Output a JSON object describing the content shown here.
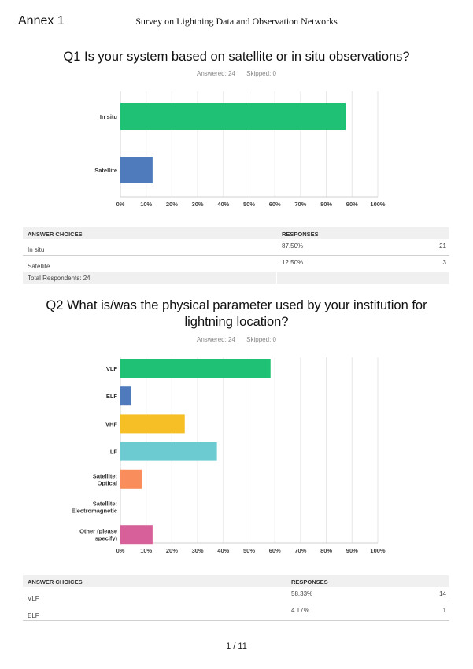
{
  "header": {
    "annex": "Annex 1",
    "title": "Survey on  Lightning Data and Observation Networks"
  },
  "q1": {
    "title": "Q1 Is your system based on satellite or in situ observations?",
    "answered": "Answered: 24",
    "skipped": "Skipped: 0",
    "table": {
      "col_choices": "ANSWER CHOICES",
      "col_responses": "RESPONSES",
      "rows": [
        {
          "label": "In situ",
          "pct": "87.50%",
          "count": "21"
        },
        {
          "label": "Satellite",
          "pct": "12.50%",
          "count": "3"
        }
      ],
      "total": "Total Respondents: 24"
    }
  },
  "q2": {
    "title_line1": "Q2 What is/was the physical parameter used by your institution for",
    "title_line2": "lightning location?",
    "answered": "Answered: 24",
    "skipped": "Skipped: 0",
    "table": {
      "col_choices": "ANSWER CHOICES",
      "col_responses": "RESPONSES",
      "rows": [
        {
          "label": "VLF",
          "pct": "58.33%",
          "count": "14"
        },
        {
          "label": "ELF",
          "pct": "4.17%",
          "count": "1"
        }
      ]
    }
  },
  "footer": {
    "page": "1 / 11"
  },
  "chart_data": [
    {
      "type": "bar",
      "orientation": "horizontal",
      "categories": [
        "In situ",
        "Satellite"
      ],
      "values": [
        87.5,
        12.5
      ],
      "colors": [
        "#1fc274",
        "#4f7bbd"
      ],
      "xlim": [
        0,
        100
      ],
      "xticks": [
        "0%",
        "10%",
        "20%",
        "30%",
        "40%",
        "50%",
        "60%",
        "70%",
        "80%",
        "90%",
        "100%"
      ],
      "grid": true
    },
    {
      "type": "bar",
      "orientation": "horizontal",
      "categories": [
        "VLF",
        "ELF",
        "VHF",
        "LF",
        "Satellite:\nOptical",
        "Satellite:\nElectromagnetic",
        "Other (please\nspecify)"
      ],
      "values": [
        58.33,
        4.17,
        25.0,
        37.5,
        8.33,
        0,
        12.5
      ],
      "colors": [
        "#1fc274",
        "#4f7bbd",
        "#f6bf26",
        "#6ccbd0",
        "#f98d5b",
        "#9ac25d",
        "#d8609a"
      ],
      "xlim": [
        0,
        100
      ],
      "xticks": [
        "0%",
        "10%",
        "20%",
        "30%",
        "40%",
        "50%",
        "60%",
        "70%",
        "80%",
        "90%",
        "100%"
      ],
      "grid": true
    }
  ]
}
